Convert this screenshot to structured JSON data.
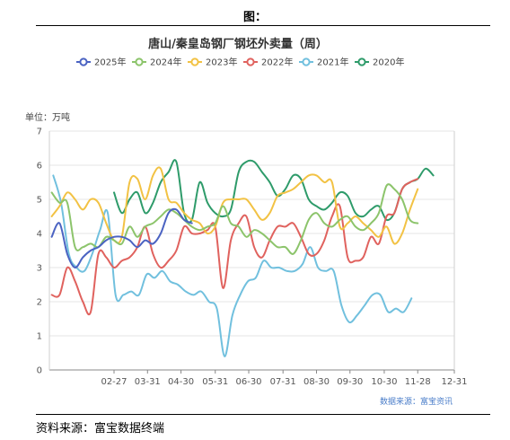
{
  "header": {
    "label": "图："
  },
  "footer": {
    "source": "资料来源：富宝数据终端"
  },
  "chart_data": {
    "type": "line",
    "title": "唐山/秦皇岛钢厂钢坯外卖量（周）",
    "unit_label": "单位：万吨",
    "source_note": "数据来源：富宝资讯",
    "ylim": [
      0,
      7
    ],
    "y_ticks": [
      "0",
      "1",
      "2",
      "3",
      "4",
      "5",
      "6",
      "7"
    ],
    "x_ticks": [
      "02-27",
      "03-31",
      "04-30",
      "05-31",
      "06-30",
      "07-31",
      "08-30",
      "09-30",
      "10-30",
      "11-28",
      "12-31"
    ],
    "grid": true,
    "legend_position": "top",
    "series": [
      {
        "name": "2025年",
        "color": "#4b63c2",
        "values": [
          3.9,
          4.3,
          3.4,
          3.0,
          3.3,
          3.5,
          3.6,
          3.8,
          3.9,
          3.9,
          3.8,
          3.6,
          3.8,
          3.7,
          4.0,
          4.6,
          4.7,
          4.4,
          4.3
        ]
      },
      {
        "name": "2024年",
        "color": "#8cc46b",
        "values": [
          5.2,
          4.9,
          4.9,
          3.6,
          3.6,
          3.7,
          3.6,
          3.9,
          3.8,
          3.7,
          4.2,
          3.9,
          4.2,
          4.3,
          4.5,
          4.7,
          4.6,
          4.4,
          4.2,
          4.1,
          4.2,
          4.3,
          4.8,
          4.3,
          4.2,
          3.9,
          4.1,
          4.0,
          3.8,
          3.6,
          3.6,
          3.4,
          3.8,
          4.4,
          4.6,
          4.3,
          4.2,
          4.4,
          4.5,
          4.2,
          4.1,
          4.3,
          4.6,
          5.4,
          5.3,
          5.0,
          4.4,
          4.3
        ]
      },
      {
        "name": "2023年",
        "color": "#f2c244",
        "values": [
          4.5,
          4.8,
          5.2,
          5.0,
          4.7,
          5.0,
          4.9,
          4.3,
          3.8,
          3.9,
          5.5,
          5.6,
          5.0,
          5.7,
          5.9,
          5.0,
          4.9,
          4.6,
          4.4,
          4.3,
          4.0,
          4.2,
          4.9,
          5.0,
          5.0,
          5.0,
          4.7,
          4.4,
          4.6,
          5.1,
          5.2,
          5.3,
          5.5,
          5.7,
          5.7,
          5.5,
          5.5,
          4.2,
          4.3,
          4.5,
          4.3,
          4.1,
          3.9,
          4.2,
          3.7,
          4.0,
          4.7,
          5.3
        ]
      },
      {
        "name": "2022年",
        "color": "#e0625e",
        "values": [
          2.2,
          2.2,
          3.0,
          2.6,
          2.0,
          1.7,
          3.4,
          3.3,
          3.0,
          3.2,
          3.3,
          3.6,
          4.2,
          3.4,
          3.0,
          3.2,
          3.5,
          4.2,
          4.0,
          4.0,
          4.1,
          4.2,
          2.4,
          3.8,
          4.3,
          4.5,
          3.6,
          3.3,
          3.8,
          4.2,
          4.2,
          4.3,
          3.9,
          3.4,
          3.4,
          3.8,
          4.5,
          4.8,
          3.3,
          3.2,
          3.3,
          3.9,
          3.7,
          4.5,
          4.6,
          5.3,
          5.5,
          5.6
        ]
      },
      {
        "name": "2021年",
        "color": "#71c0de",
        "values": [
          5.7,
          4.9,
          3.4,
          3.0,
          2.9,
          3.4,
          4.1,
          4.6,
          2.2,
          2.2,
          2.3,
          2.2,
          2.8,
          2.7,
          2.9,
          2.6,
          2.5,
          2.3,
          2.2,
          2.3,
          2.0,
          1.8,
          0.4,
          1.6,
          2.2,
          2.6,
          2.7,
          3.2,
          3.0,
          3.0,
          2.9,
          2.9,
          3.1,
          3.6,
          3.0,
          2.9,
          2.9,
          1.9,
          1.4,
          1.6,
          1.9,
          2.2,
          2.2,
          1.7,
          1.8,
          1.7,
          2.1
        ]
      },
      {
        "name": "2020年",
        "color": "#2e9b6a",
        "values": [
          5.2,
          4.6,
          5.0,
          5.2,
          4.6,
          4.9,
          5.5,
          5.8,
          6.1,
          4.6,
          4.4,
          5.5,
          4.9,
          4.6,
          4.5,
          4.7,
          5.8,
          6.1,
          6.1,
          5.8,
          5.5,
          5.1,
          5.3,
          5.7,
          5.6,
          5.0,
          4.8,
          4.7,
          4.9,
          5.2,
          5.1,
          4.6,
          4.5,
          4.7,
          4.8,
          4.4,
          4.6,
          5.3,
          5.5,
          5.6,
          5.9,
          5.7
        ]
      }
    ]
  }
}
